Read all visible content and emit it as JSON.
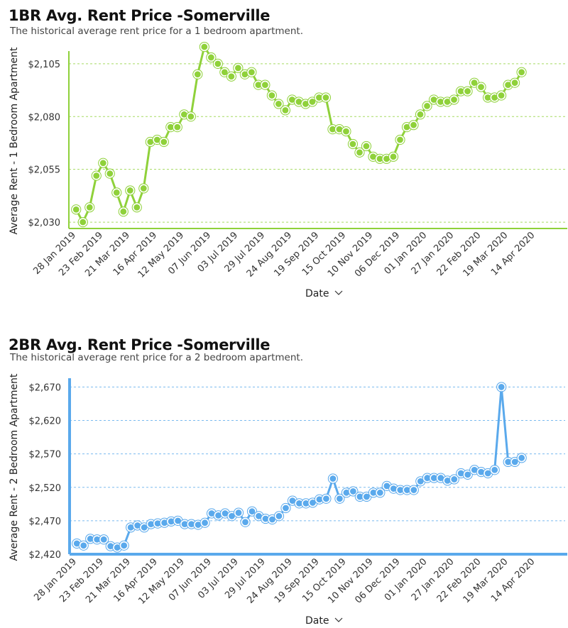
{
  "chart_data": [
    {
      "type": "line",
      "title": "1BR Avg. Rent Price -Somerville",
      "subtitle": "The historical average rent price for a 1 bedroom apartment.",
      "xlabel": "Date",
      "ylabel": "Average Rent - 1 Bedroom Apartment",
      "x_ticks": [
        "28 Jan 2019",
        "23 Feb 2019",
        "21 Mar 2019",
        "16 Apr 2019",
        "12 May 2019",
        "07 Jun 2019",
        "03 Jul 2019",
        "29 Jul 2019",
        "24 Aug 2019",
        "19 Sep 2019",
        "15 Oct 2019",
        "10 Nov 2019",
        "06 Dec 2019",
        "01 Jan 2020",
        "27 Jan 2020",
        "22 Feb 2020",
        "19 Mar 2020",
        "14 Apr 2020"
      ],
      "y_ticks": [
        "$2,030",
        "$2,055",
        "$2,080",
        "$2,105"
      ],
      "ylim": [
        2027,
        2110
      ],
      "x_start": "2019-01-21",
      "x_end": "2020-05-13",
      "x_step_days": 6.5,
      "color": "#8fd13a",
      "grid": "horizontal dashed",
      "values": [
        2036,
        2030,
        2037,
        2052,
        2058,
        2053,
        2044,
        2035,
        2045,
        2037,
        2046,
        2068,
        2069,
        2068,
        2075,
        2075,
        2081,
        2080,
        2100,
        2113,
        2108,
        2105,
        2101,
        2099,
        2103,
        2100,
        2101,
        2095,
        2095,
        2090,
        2086,
        2083,
        2088,
        2087,
        2086,
        2087,
        2089,
        2089,
        2074,
        2074,
        2073,
        2067,
        2063,
        2066,
        2061,
        2060,
        2060,
        2061,
        2069,
        2075,
        2076,
        2081,
        2085,
        2088,
        2087,
        2087,
        2088,
        2092,
        2092,
        2096,
        2094,
        2089,
        2089,
        2090,
        2095,
        2096,
        2101
      ]
    },
    {
      "type": "line",
      "title": "2BR Avg. Rent Price -Somerville",
      "subtitle": "The historical average rent price for a 2 bedroom apartment.",
      "xlabel": "Date",
      "ylabel": "Average Rent - 2 Bedroom Apartment",
      "x_ticks": [
        "28 Jan 2019",
        "23 Feb 2019",
        "21 Mar 2019",
        "16 Apr 2019",
        "12 May 2019",
        "07 Jun 2019",
        "03 Jul 2019",
        "29 Jul 2019",
        "24 Aug 2019",
        "19 Sep 2019",
        "15 Oct 2019",
        "10 Nov 2019",
        "06 Dec 2019",
        "01 Jan 2020",
        "27 Jan 2020",
        "22 Feb 2020",
        "19 Mar 2020",
        "14 Apr 2020"
      ],
      "y_ticks": [
        "$2,420",
        "$2,470",
        "$2,520",
        "$2,570",
        "$2,620",
        "$2,670"
      ],
      "ylim": [
        2420,
        2680
      ],
      "x_start": "2019-01-21",
      "x_end": "2020-05-13",
      "x_step_days": 6.5,
      "color": "#5aa9ec",
      "grid": "horizontal dashed",
      "values": [
        2436,
        2433,
        2443,
        2442,
        2442,
        2432,
        2430,
        2433,
        2460,
        2463,
        2460,
        2465,
        2466,
        2467,
        2469,
        2470,
        2465,
        2465,
        2464,
        2467,
        2481,
        2478,
        2481,
        2477,
        2482,
        2468,
        2484,
        2477,
        2473,
        2472,
        2477,
        2489,
        2500,
        2496,
        2496,
        2497,
        2502,
        2503,
        2533,
        2503,
        2512,
        2514,
        2506,
        2506,
        2512,
        2512,
        2522,
        2518,
        2516,
        2516,
        2516,
        2529,
        2534,
        2534,
        2534,
        2530,
        2532,
        2541,
        2539,
        2546,
        2543,
        2541,
        2546,
        2670,
        2558,
        2558,
        2564
      ]
    }
  ]
}
